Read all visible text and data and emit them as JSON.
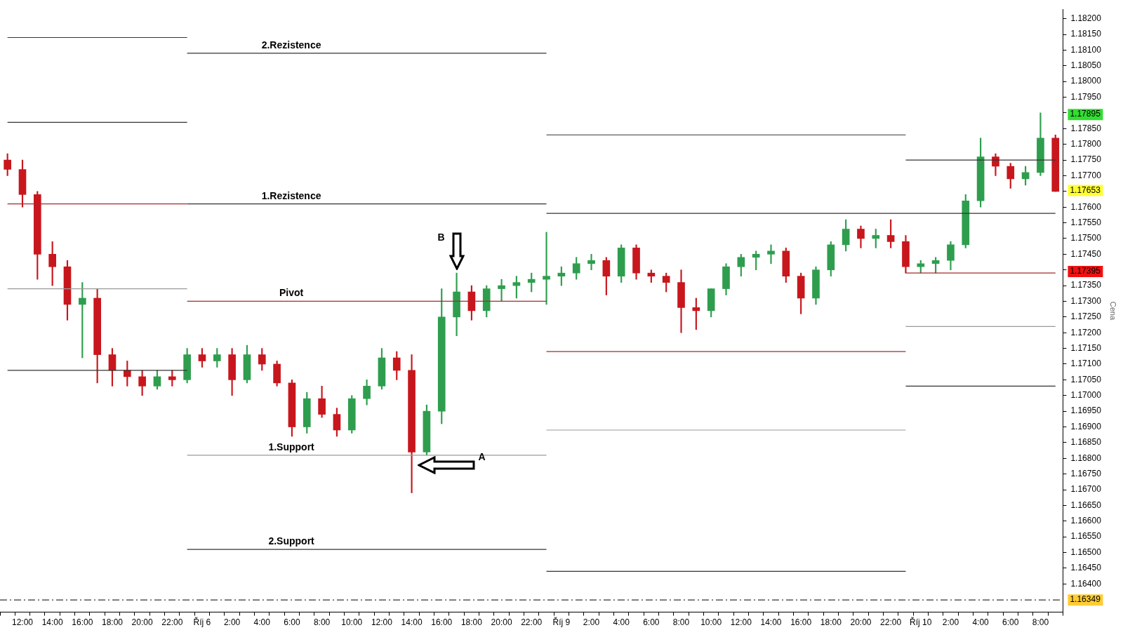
{
  "chart_data": {
    "type": "candlestick",
    "ylabel": "Cena",
    "grid": false,
    "legend": false,
    "categories": [
      null,
      "12:00",
      null,
      "14:00",
      null,
      "16:00",
      null,
      "18:00",
      null,
      "20:00",
      null,
      "22:00",
      null,
      "Říj 6",
      null,
      "2:00",
      null,
      "4:00",
      null,
      "6:00",
      null,
      "8:00",
      null,
      "10:00",
      null,
      "12:00",
      null,
      "14:00",
      null,
      "16:00",
      null,
      "18:00",
      null,
      "20:00",
      null,
      "22:00",
      null,
      "Říj 9",
      null,
      "2:00",
      null,
      "4:00",
      null,
      "6:00",
      null,
      "8:00",
      null,
      "10:00",
      null,
      "12:00",
      null,
      "14:00",
      null,
      "16:00",
      null,
      "18:00",
      null,
      "20:00",
      null,
      "22:00",
      null,
      "Říj 10",
      null,
      "2:00",
      null,
      "4:00",
      null,
      "6:00",
      null,
      "8:00",
      null
    ],
    "ylim": [
      1.1631,
      1.1823
    ],
    "yticks": [
      {
        "value": 1.164,
        "label": "1.16400"
      },
      {
        "value": 1.1645,
        "label": "1.16450"
      },
      {
        "value": 1.165,
        "label": "1.16500"
      },
      {
        "value": 1.1655,
        "label": "1.16550"
      },
      {
        "value": 1.166,
        "label": "1.16600"
      },
      {
        "value": 1.1665,
        "label": "1.16650"
      },
      {
        "value": 1.167,
        "label": "1.16700"
      },
      {
        "value": 1.1675,
        "label": "1.16750"
      },
      {
        "value": 1.168,
        "label": "1.16800"
      },
      {
        "value": 1.1685,
        "label": "1.16850"
      },
      {
        "value": 1.169,
        "label": "1.16900"
      },
      {
        "value": 1.1695,
        "label": "1.16950"
      },
      {
        "value": 1.17,
        "label": "1.17000"
      },
      {
        "value": 1.1705,
        "label": "1.17050"
      },
      {
        "value": 1.171,
        "label": "1.17100"
      },
      {
        "value": 1.1715,
        "label": "1.17150"
      },
      {
        "value": 1.172,
        "label": "1.17200"
      },
      {
        "value": 1.1725,
        "label": "1.17250"
      },
      {
        "value": 1.173,
        "label": "1.17300"
      },
      {
        "value": 1.1735,
        "label": "1.17350"
      },
      {
        "value": 1.174,
        "label": null
      },
      {
        "value": 1.1745,
        "label": "1.17450"
      },
      {
        "value": 1.175,
        "label": "1.17500"
      },
      {
        "value": 1.1755,
        "label": "1.17550"
      },
      {
        "value": 1.176,
        "label": "1.17600"
      },
      {
        "value": 1.1765,
        "label": null
      },
      {
        "value": 1.177,
        "label": "1.17700"
      },
      {
        "value": 1.1775,
        "label": "1.17750"
      },
      {
        "value": 1.178,
        "label": "1.17800"
      },
      {
        "value": 1.1785,
        "label": "1.17850"
      },
      {
        "value": 1.179,
        "label": null
      },
      {
        "value": 1.1795,
        "label": "1.17950"
      },
      {
        "value": 1.18,
        "label": "1.18000"
      },
      {
        "value": 1.1805,
        "label": "1.18050"
      },
      {
        "value": 1.181,
        "label": "1.18100"
      },
      {
        "value": 1.1815,
        "label": "1.18150"
      },
      {
        "value": 1.182,
        "label": "1.18200"
      }
    ],
    "series": [
      {
        "type": "line",
        "color": "#333333",
        "values": [
          1.1814,
          1.1814,
          1.1814,
          1.1814,
          1.1814,
          1.1814,
          1.1814,
          1.1814,
          1.1814,
          1.1814,
          1.1814,
          1.1814,
          1.1814,
          null,
          null,
          null,
          null,
          null,
          null,
          null,
          null,
          null,
          null,
          null,
          null,
          null,
          null,
          null,
          null,
          null,
          null,
          null,
          null,
          null,
          null,
          null,
          null,
          null,
          null,
          null,
          null,
          null,
          null,
          null,
          null,
          null,
          null,
          null,
          null,
          null,
          null,
          null,
          null,
          null,
          null,
          null,
          null,
          null,
          null,
          null,
          null,
          null,
          null,
          null,
          null,
          null,
          null,
          null,
          null,
          null,
          null
        ]
      },
      {
        "type": "line",
        "color": "#333333",
        "values": [
          1.1787,
          1.1787,
          1.1787,
          1.1787,
          1.1787,
          1.1787,
          1.1787,
          1.1787,
          1.1787,
          1.1787,
          1.1787,
          1.1787,
          1.1787,
          null,
          null,
          null,
          null,
          null,
          null,
          null,
          null,
          null,
          null,
          null,
          null,
          null,
          null,
          null,
          null,
          null,
          null,
          null,
          null,
          null,
          null,
          null,
          null,
          null,
          null,
          null,
          null,
          null,
          null,
          null,
          null,
          null,
          null,
          null,
          null,
          null,
          null,
          null,
          null,
          null,
          null,
          null,
          null,
          null,
          null,
          null,
          null,
          null,
          null,
          null,
          null,
          null,
          null,
          null,
          null,
          null,
          null
        ]
      },
      {
        "type": "line",
        "color": "#a52a2a",
        "values": [
          1.1761,
          1.1761,
          1.1761,
          1.1761,
          1.1761,
          1.1761,
          1.1761,
          1.1761,
          1.1761,
          1.1761,
          1.1761,
          1.1761,
          1.1761,
          null,
          null,
          null,
          null,
          null,
          null,
          null,
          null,
          null,
          null,
          null,
          null,
          null,
          null,
          null,
          null,
          null,
          null,
          null,
          null,
          null,
          null,
          null,
          null,
          null,
          null,
          null,
          null,
          null,
          null,
          null,
          null,
          null,
          null,
          null,
          null,
          null,
          null,
          null,
          null,
          null,
          null,
          null,
          null,
          null,
          null,
          null,
          null,
          null,
          null,
          null,
          null,
          null,
          null,
          null,
          null,
          null,
          null
        ]
      },
      {
        "type": "line",
        "color": "#999999",
        "values": [
          1.1734,
          1.1734,
          1.1734,
          1.1734,
          1.1734,
          1.1734,
          1.1734,
          1.1734,
          1.1734,
          1.1734,
          1.1734,
          1.1734,
          1.1734,
          null,
          null,
          null,
          null,
          null,
          null,
          null,
          null,
          null,
          null,
          null,
          null,
          null,
          null,
          null,
          null,
          null,
          null,
          null,
          null,
          null,
          null,
          null,
          null,
          null,
          null,
          null,
          null,
          null,
          null,
          null,
          null,
          null,
          null,
          null,
          null,
          null,
          null,
          null,
          null,
          null,
          null,
          null,
          null,
          null,
          null,
          null,
          null,
          null,
          null,
          null,
          null,
          null,
          null,
          null,
          null,
          null,
          null
        ]
      },
      {
        "type": "line",
        "color": "#333333",
        "values": [
          1.1708,
          1.1708,
          1.1708,
          1.1708,
          1.1708,
          1.1708,
          1.1708,
          1.1708,
          1.1708,
          1.1708,
          1.1708,
          1.1708,
          1.1708,
          null,
          null,
          null,
          null,
          null,
          null,
          null,
          null,
          null,
          null,
          null,
          null,
          null,
          null,
          null,
          null,
          null,
          null,
          null,
          null,
          null,
          null,
          null,
          null,
          null,
          null,
          null,
          null,
          null,
          null,
          null,
          null,
          null,
          null,
          null,
          null,
          null,
          null,
          null,
          null,
          null,
          null,
          null,
          null,
          null,
          null,
          null,
          null,
          null,
          null,
          null,
          null,
          null,
          null,
          null,
          null,
          null,
          null
        ]
      },
      {
        "type": "line",
        "name": "2.Rezistence",
        "color": "#333333",
        "values": [
          null,
          null,
          null,
          null,
          null,
          null,
          null,
          null,
          null,
          null,
          null,
          null,
          1.1809,
          1.1809,
          1.1809,
          1.1809,
          1.1809,
          1.1809,
          1.1809,
          1.1809,
          1.1809,
          1.1809,
          1.1809,
          1.1809,
          1.1809,
          1.1809,
          1.1809,
          1.1809,
          1.1809,
          1.1809,
          1.1809,
          1.1809,
          1.1809,
          1.1809,
          1.1809,
          1.1809,
          1.1809,
          null,
          null,
          null,
          null,
          null,
          null,
          null,
          null,
          null,
          null,
          null,
          null,
          null,
          null,
          null,
          null,
          null,
          null,
          null,
          null,
          null,
          null,
          null,
          null,
          null,
          null,
          null,
          null,
          null,
          null,
          null,
          null,
          null,
          null
        ]
      },
      {
        "type": "line",
        "name": "1.Rezistence",
        "color": "#333333",
        "values": [
          null,
          null,
          null,
          null,
          null,
          null,
          null,
          null,
          null,
          null,
          null,
          null,
          1.1761,
          1.1761,
          1.1761,
          1.1761,
          1.1761,
          1.1761,
          1.1761,
          1.1761,
          1.1761,
          1.1761,
          1.1761,
          1.1761,
          1.1761,
          1.1761,
          1.1761,
          1.1761,
          1.1761,
          1.1761,
          1.1761,
          1.1761,
          1.1761,
          1.1761,
          1.1761,
          1.1761,
          1.1761,
          null,
          null,
          null,
          null,
          null,
          null,
          null,
          null,
          null,
          null,
          null,
          null,
          null,
          null,
          null,
          null,
          null,
          null,
          null,
          null,
          null,
          null,
          null,
          null,
          null,
          null,
          null,
          null,
          null,
          null,
          null,
          null,
          null,
          null
        ]
      },
      {
        "type": "line",
        "name": "Pivot",
        "color": "#a52a2a",
        "values": [
          null,
          null,
          null,
          null,
          null,
          null,
          null,
          null,
          null,
          null,
          null,
          null,
          1.173,
          1.173,
          1.173,
          1.173,
          1.173,
          1.173,
          1.173,
          1.173,
          1.173,
          1.173,
          1.173,
          1.173,
          1.173,
          1.173,
          1.173,
          1.173,
          1.173,
          1.173,
          1.173,
          1.173,
          1.173,
          1.173,
          1.173,
          1.173,
          1.173,
          null,
          null,
          null,
          null,
          null,
          null,
          null,
          null,
          null,
          null,
          null,
          null,
          null,
          null,
          null,
          null,
          null,
          null,
          null,
          null,
          null,
          null,
          null,
          null,
          null,
          null,
          null,
          null,
          null,
          null,
          null,
          null,
          null,
          null
        ]
      },
      {
        "type": "line",
        "name": "1.Support",
        "color": "#999999",
        "values": [
          null,
          null,
          null,
          null,
          null,
          null,
          null,
          null,
          null,
          null,
          null,
          null,
          1.1681,
          1.1681,
          1.1681,
          1.1681,
          1.1681,
          1.1681,
          1.1681,
          1.1681,
          1.1681,
          1.1681,
          1.1681,
          1.1681,
          1.1681,
          1.1681,
          1.1681,
          1.1681,
          1.1681,
          1.1681,
          1.1681,
          1.1681,
          1.1681,
          1.1681,
          1.1681,
          1.1681,
          1.1681,
          null,
          null,
          null,
          null,
          null,
          null,
          null,
          null,
          null,
          null,
          null,
          null,
          null,
          null,
          null,
          null,
          null,
          null,
          null,
          null,
          null,
          null,
          null,
          null,
          null,
          null,
          null,
          null,
          null,
          null,
          null,
          null,
          null,
          null
        ]
      },
      {
        "type": "line",
        "name": "2.Support",
        "color": "#333333",
        "values": [
          null,
          null,
          null,
          null,
          null,
          null,
          null,
          null,
          null,
          null,
          null,
          null,
          1.1651,
          1.1651,
          1.1651,
          1.1651,
          1.1651,
          1.1651,
          1.1651,
          1.1651,
          1.1651,
          1.1651,
          1.1651,
          1.1651,
          1.1651,
          1.1651,
          1.1651,
          1.1651,
          1.1651,
          1.1651,
          1.1651,
          1.1651,
          1.1651,
          1.1651,
          1.1651,
          1.1651,
          1.1651,
          null,
          null,
          null,
          null,
          null,
          null,
          null,
          null,
          null,
          null,
          null,
          null,
          null,
          null,
          null,
          null,
          null,
          null,
          null,
          null,
          null,
          null,
          null,
          null,
          null,
          null,
          null,
          null,
          null,
          null,
          null,
          null,
          null,
          null
        ]
      },
      {
        "type": "line",
        "color": "#333333",
        "values": [
          null,
          null,
          null,
          null,
          null,
          null,
          null,
          null,
          null,
          null,
          null,
          null,
          null,
          null,
          null,
          null,
          null,
          null,
          null,
          null,
          null,
          null,
          null,
          null,
          null,
          null,
          null,
          null,
          null,
          null,
          null,
          null,
          null,
          null,
          null,
          null,
          1.1783,
          1.1783,
          1.1783,
          1.1783,
          1.1783,
          1.1783,
          1.1783,
          1.1783,
          1.1783,
          1.1783,
          1.1783,
          1.1783,
          1.1783,
          1.1783,
          1.1783,
          1.1783,
          1.1783,
          1.1783,
          1.1783,
          1.1783,
          1.1783,
          1.1783,
          1.1783,
          1.1783,
          1.1783,
          null,
          null,
          null,
          null,
          null,
          null,
          null,
          null,
          null,
          null
        ]
      },
      {
        "type": "line",
        "color": "#333333",
        "values": [
          null,
          null,
          null,
          null,
          null,
          null,
          null,
          null,
          null,
          null,
          null,
          null,
          null,
          null,
          null,
          null,
          null,
          null,
          null,
          null,
          null,
          null,
          null,
          null,
          null,
          null,
          null,
          null,
          null,
          null,
          null,
          null,
          null,
          null,
          null,
          null,
          1.1758,
          1.1758,
          1.1758,
          1.1758,
          1.1758,
          1.1758,
          1.1758,
          1.1758,
          1.1758,
          1.1758,
          1.1758,
          1.1758,
          1.1758,
          1.1758,
          1.1758,
          1.1758,
          1.1758,
          1.1758,
          1.1758,
          1.1758,
          1.1758,
          1.1758,
          1.1758,
          1.1758,
          1.1758,
          1.1758,
          1.1758,
          1.1758,
          1.1758,
          1.1758,
          1.1758,
          1.1758,
          1.1758,
          1.1758,
          1.1758
        ]
      },
      {
        "type": "line",
        "color": "#a52a2a",
        "values": [
          null,
          null,
          null,
          null,
          null,
          null,
          null,
          null,
          null,
          null,
          null,
          null,
          null,
          null,
          null,
          null,
          null,
          null,
          null,
          null,
          null,
          null,
          null,
          null,
          null,
          null,
          null,
          null,
          null,
          null,
          null,
          null,
          null,
          null,
          null,
          null,
          1.1714,
          1.1714,
          1.1714,
          1.1714,
          1.1714,
          1.1714,
          1.1714,
          1.1714,
          1.1714,
          1.1714,
          1.1714,
          1.1714,
          1.1714,
          1.1714,
          1.1714,
          1.1714,
          1.1714,
          1.1714,
          1.1714,
          1.1714,
          1.1714,
          1.1714,
          1.1714,
          1.1714,
          1.1714,
          null,
          null,
          null,
          null,
          null,
          null,
          null,
          null,
          null,
          null
        ]
      },
      {
        "type": "line",
        "color": "#999999",
        "values": [
          null,
          null,
          null,
          null,
          null,
          null,
          null,
          null,
          null,
          null,
          null,
          null,
          null,
          null,
          null,
          null,
          null,
          null,
          null,
          null,
          null,
          null,
          null,
          null,
          null,
          null,
          null,
          null,
          null,
          null,
          null,
          null,
          null,
          null,
          null,
          null,
          1.1689,
          1.1689,
          1.1689,
          1.1689,
          1.1689,
          1.1689,
          1.1689,
          1.1689,
          1.1689,
          1.1689,
          1.1689,
          1.1689,
          1.1689,
          1.1689,
          1.1689,
          1.1689,
          1.1689,
          1.1689,
          1.1689,
          1.1689,
          1.1689,
          1.1689,
          1.1689,
          1.1689,
          1.1689,
          null,
          null,
          null,
          null,
          null,
          null,
          null,
          null,
          null,
          null
        ]
      },
      {
        "type": "line",
        "color": "#333333",
        "values": [
          null,
          null,
          null,
          null,
          null,
          null,
          null,
          null,
          null,
          null,
          null,
          null,
          null,
          null,
          null,
          null,
          null,
          null,
          null,
          null,
          null,
          null,
          null,
          null,
          null,
          null,
          null,
          null,
          null,
          null,
          null,
          null,
          null,
          null,
          null,
          null,
          1.1644,
          1.1644,
          1.1644,
          1.1644,
          1.1644,
          1.1644,
          1.1644,
          1.1644,
          1.1644,
          1.1644,
          1.1644,
          1.1644,
          1.1644,
          1.1644,
          1.1644,
          1.1644,
          1.1644,
          1.1644,
          1.1644,
          1.1644,
          1.1644,
          1.1644,
          1.1644,
          1.1644,
          1.1644,
          null,
          null,
          null,
          null,
          null,
          null,
          null,
          null,
          null,
          null
        ]
      },
      {
        "type": "line",
        "color": "#333333",
        "values": [
          null,
          null,
          null,
          null,
          null,
          null,
          null,
          null,
          null,
          null,
          null,
          null,
          null,
          null,
          null,
          null,
          null,
          null,
          null,
          null,
          null,
          null,
          null,
          null,
          null,
          null,
          null,
          null,
          null,
          null,
          null,
          null,
          null,
          null,
          null,
          null,
          null,
          null,
          null,
          null,
          null,
          null,
          null,
          null,
          null,
          null,
          null,
          null,
          null,
          null,
          null,
          null,
          null,
          null,
          null,
          null,
          null,
          null,
          null,
          null,
          1.1775,
          1.1775,
          1.1775,
          1.1775,
          1.1775,
          1.1775,
          1.1775,
          1.1775,
          1.1775,
          1.1775,
          1.1775
        ]
      },
      {
        "type": "line",
        "color": "#a52a2a",
        "values": [
          null,
          null,
          null,
          null,
          null,
          null,
          null,
          null,
          null,
          null,
          null,
          null,
          null,
          null,
          null,
          null,
          null,
          null,
          null,
          null,
          null,
          null,
          null,
          null,
          null,
          null,
          null,
          null,
          null,
          null,
          null,
          null,
          null,
          null,
          null,
          null,
          null,
          null,
          null,
          null,
          null,
          null,
          null,
          null,
          null,
          null,
          null,
          null,
          null,
          null,
          null,
          null,
          null,
          null,
          null,
          null,
          null,
          null,
          null,
          null,
          1.1739,
          1.1739,
          1.1739,
          1.1739,
          1.1739,
          1.1739,
          1.1739,
          1.1739,
          1.1739,
          1.1739,
          1.1739
        ]
      },
      {
        "type": "line",
        "color": "#999999",
        "values": [
          null,
          null,
          null,
          null,
          null,
          null,
          null,
          null,
          null,
          null,
          null,
          null,
          null,
          null,
          null,
          null,
          null,
          null,
          null,
          null,
          null,
          null,
          null,
          null,
          null,
          null,
          null,
          null,
          null,
          null,
          null,
          null,
          null,
          null,
          null,
          null,
          null,
          null,
          null,
          null,
          null,
          null,
          null,
          null,
          null,
          null,
          null,
          null,
          null,
          null,
          null,
          null,
          null,
          null,
          null,
          null,
          null,
          null,
          null,
          null,
          1.1722,
          1.1722,
          1.1722,
          1.1722,
          1.1722,
          1.1722,
          1.1722,
          1.1722,
          1.1722,
          1.1722,
          1.1722
        ]
      },
      {
        "type": "line",
        "color": "#333333",
        "values": [
          null,
          null,
          null,
          null,
          null,
          null,
          null,
          null,
          null,
          null,
          null,
          null,
          null,
          null,
          null,
          null,
          null,
          null,
          null,
          null,
          null,
          null,
          null,
          null,
          null,
          null,
          null,
          null,
          null,
          null,
          null,
          null,
          null,
          null,
          null,
          null,
          null,
          null,
          null,
          null,
          null,
          null,
          null,
          null,
          null,
          null,
          null,
          null,
          null,
          null,
          null,
          null,
          null,
          null,
          null,
          null,
          null,
          null,
          null,
          null,
          1.1703,
          1.1703,
          1.1703,
          1.1703,
          1.1703,
          1.1703,
          1.1703,
          1.1703,
          1.1703,
          1.1703,
          1.1703
        ]
      },
      {
        "ohlc": [
          [
            1.1775,
            1.1777,
            1.177,
            1.1772
          ],
          [
            1.1772,
            1.1775,
            1.176,
            1.1764
          ],
          [
            1.1764,
            1.1765,
            1.1737,
            1.1745
          ],
          [
            1.1745,
            1.1749,
            1.1735,
            1.1741
          ],
          [
            1.1741,
            1.1743,
            1.1724,
            1.1729
          ],
          [
            1.1729,
            1.1736,
            1.1712,
            1.1731
          ],
          [
            1.1731,
            1.1734,
            1.1704,
            1.1713
          ],
          [
            1.1713,
            1.1715,
            1.1703,
            1.1708
          ],
          [
            1.1708,
            1.1711,
            1.1703,
            1.1706
          ],
          [
            1.1706,
            1.1708,
            1.17,
            1.1703
          ],
          [
            1.1703,
            1.1708,
            1.1702,
            1.1706
          ],
          [
            1.1706,
            1.1708,
            1.1703,
            1.1705
          ],
          [
            1.1705,
            1.1715,
            1.1704,
            1.1713
          ],
          [
            1.1713,
            1.1715,
            1.1709,
            1.1711
          ],
          [
            1.1711,
            1.1715,
            1.1709,
            1.1713
          ],
          [
            1.1713,
            1.1715,
            1.17,
            1.1705
          ],
          [
            1.1705,
            1.1716,
            1.1704,
            1.1713
          ],
          [
            1.1713,
            1.1715,
            1.1708,
            1.171
          ],
          [
            1.171,
            1.1711,
            1.1703,
            1.1704
          ],
          [
            1.1704,
            1.1705,
            1.1687,
            1.169
          ],
          [
            1.169,
            1.1701,
            1.1688,
            1.1699
          ],
          [
            1.1699,
            1.1703,
            1.1693,
            1.1694
          ],
          [
            1.1694,
            1.1696,
            1.1687,
            1.1689
          ],
          [
            1.1689,
            1.17,
            1.1688,
            1.1699
          ],
          [
            1.1699,
            1.1705,
            1.1697,
            1.1703
          ],
          [
            1.1703,
            1.1715,
            1.1702,
            1.1712
          ],
          [
            1.1712,
            1.1714,
            1.1705,
            1.1708
          ],
          [
            1.1708,
            1.1713,
            1.1669,
            1.1682
          ],
          [
            1.1682,
            1.1697,
            1.1681,
            1.1695
          ],
          [
            1.1695,
            1.1734,
            1.1691,
            1.1725
          ],
          [
            1.1725,
            1.1739,
            1.1719,
            1.1733
          ],
          [
            1.1733,
            1.1735,
            1.1724,
            1.1727
          ],
          [
            1.1727,
            1.1735,
            1.1725,
            1.1734
          ],
          [
            1.1734,
            1.1737,
            1.173,
            1.1735
          ],
          [
            1.1735,
            1.1738,
            1.1731,
            1.1736
          ],
          [
            1.1736,
            1.1739,
            1.1733,
            1.1737
          ],
          [
            1.1737,
            1.1752,
            1.1729,
            1.1738
          ],
          [
            1.1738,
            1.1741,
            1.1735,
            1.1739
          ],
          [
            1.1739,
            1.1744,
            1.1737,
            1.1742
          ],
          [
            1.1742,
            1.1745,
            1.174,
            1.1743
          ],
          [
            1.1743,
            1.1744,
            1.1732,
            1.1738
          ],
          [
            1.1738,
            1.1748,
            1.1736,
            1.1747
          ],
          [
            1.1747,
            1.1748,
            1.1737,
            1.1739
          ],
          [
            1.1739,
            1.174,
            1.1736,
            1.1738
          ],
          [
            1.1738,
            1.1739,
            1.1733,
            1.1736
          ],
          [
            1.1736,
            1.174,
            1.172,
            1.1728
          ],
          [
            1.1728,
            1.1731,
            1.1721,
            1.1727
          ],
          [
            1.1727,
            1.1734,
            1.1725,
            1.1734
          ],
          [
            1.1734,
            1.1742,
            1.1732,
            1.1741
          ],
          [
            1.1741,
            1.1745,
            1.1738,
            1.1744
          ],
          [
            1.1744,
            1.1746,
            1.174,
            1.1745
          ],
          [
            1.1745,
            1.1748,
            1.1742,
            1.1746
          ],
          [
            1.1746,
            1.1747,
            1.1736,
            1.1738
          ],
          [
            1.1738,
            1.1739,
            1.1726,
            1.1731
          ],
          [
            1.1731,
            1.1741,
            1.1729,
            1.174
          ],
          [
            1.174,
            1.1749,
            1.1738,
            1.1748
          ],
          [
            1.1748,
            1.1756,
            1.1746,
            1.1753
          ],
          [
            1.1753,
            1.1754,
            1.1747,
            1.175
          ],
          [
            1.175,
            1.1753,
            1.1747,
            1.1751
          ],
          [
            1.1751,
            1.1756,
            1.1747,
            1.1749
          ],
          [
            1.1749,
            1.1751,
            1.1739,
            1.1741
          ],
          [
            1.1741,
            1.1743,
            1.1739,
            1.1742
          ],
          [
            1.1742,
            1.1744,
            1.1739,
            1.1743
          ],
          [
            1.1743,
            1.1749,
            1.174,
            1.1748
          ],
          [
            1.1748,
            1.1764,
            1.1747,
            1.1762
          ],
          [
            1.1762,
            1.1782,
            1.176,
            1.1776
          ],
          [
            1.1776,
            1.1777,
            1.177,
            1.1773
          ],
          [
            1.1773,
            1.1774,
            1.1766,
            1.1769
          ],
          [
            1.1769,
            1.1773,
            1.1767,
            1.1771
          ],
          [
            1.1771,
            1.179,
            1.177,
            1.1782
          ],
          [
            1.1782,
            1.1783,
            1.1765,
            1.1765
          ]
        ],
        "colors": [
          "#c8161d",
          "#c8161d",
          "#c8161d",
          "#c8161d",
          "#c8161d",
          "#2e9e4e",
          "#c8161d",
          "#c8161d",
          "#c8161d",
          "#c8161d",
          "#2e9e4e",
          "#c8161d",
          "#2e9e4e",
          "#c8161d",
          "#2e9e4e",
          "#c8161d",
          "#2e9e4e",
          "#c8161d",
          "#c8161d",
          "#c8161d",
          "#2e9e4e",
          "#c8161d",
          "#c8161d",
          "#2e9e4e",
          "#2e9e4e",
          "#2e9e4e",
          "#c8161d",
          "#c8161d",
          "#2e9e4e",
          "#2e9e4e",
          "#2e9e4e",
          "#c8161d",
          "#2e9e4e",
          "#2e9e4e",
          "#2e9e4e",
          "#2e9e4e",
          "#2e9e4e",
          "#2e9e4e",
          "#2e9e4e",
          "#2e9e4e",
          "#c8161d",
          "#2e9e4e",
          "#c8161d",
          "#c8161d",
          "#c8161d",
          "#c8161d",
          "#c8161d",
          "#2e9e4e",
          "#2e9e4e",
          "#2e9e4e",
          "#2e9e4e",
          "#2e9e4e",
          "#c8161d",
          "#c8161d",
          "#2e9e4e",
          "#2e9e4e",
          "#2e9e4e",
          "#c8161d",
          "#2e9e4e",
          "#c8161d",
          "#c8161d",
          "#2e9e4e",
          "#2e9e4e",
          "#2e9e4e",
          "#2e9e4e",
          "#2e9e4e",
          "#c8161d",
          "#c8161d",
          "#2e9e4e",
          "#2e9e4e",
          "#c8161d"
        ]
      }
    ],
    "ref_lines": [
      {
        "axis": "y",
        "value": 1.16349,
        "label": "1.16349",
        "color": "#000000",
        "line_style": "dashed"
      }
    ],
    "annotations": [
      "A",
      "B",
      "1.17895",
      "1.17653",
      "1.17395"
    ]
  }
}
